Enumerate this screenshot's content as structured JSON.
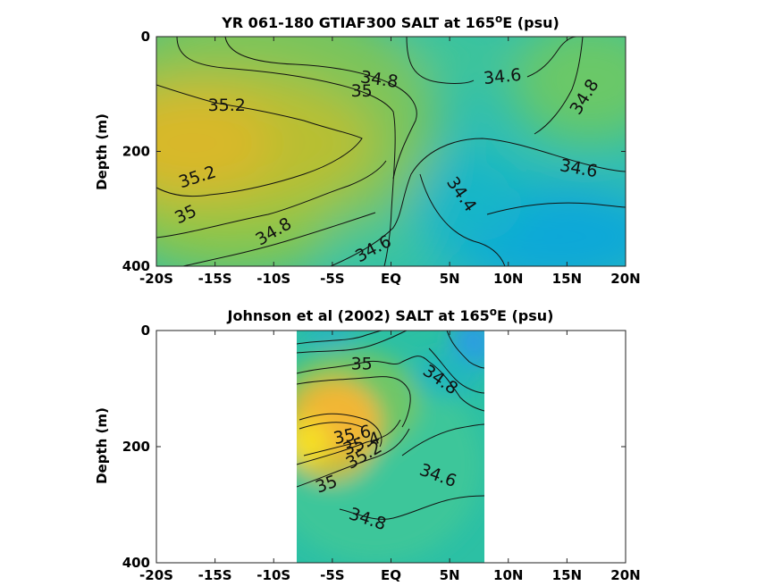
{
  "chart_data": [
    {
      "type": "heatmap",
      "title_main": "YR 061-180 GTIAF300 SALT at 165",
      "title_sup": "o",
      "title_tail": "E (psu)",
      "ylabel": "Depth (m)",
      "x_ticks": [
        "-20S",
        "-15S",
        "-10S",
        "-5S",
        "EQ",
        "5N",
        "10N",
        "15N",
        "20N"
      ],
      "y_ticks": [
        "0",
        "200",
        "400"
      ],
      "xlim": [
        -20,
        20
      ],
      "ylim": [
        0,
        400
      ],
      "y_reversed": true,
      "data_extent": [
        -20,
        20
      ],
      "contour_labels": [
        {
          "text": "34.8",
          "lat": -1,
          "depth": 75,
          "angle": 8
        },
        {
          "text": "34.6",
          "lat": 9.5,
          "depth": 70,
          "angle": -6
        },
        {
          "text": "35",
          "lat": -2.5,
          "depth": 95,
          "angle": 0
        },
        {
          "text": "35.2",
          "lat": -14,
          "depth": 120,
          "angle": 0
        },
        {
          "text": "34.8",
          "lat": 16.5,
          "depth": 105,
          "angle": -58
        },
        {
          "text": "34.6",
          "lat": 16,
          "depth": 230,
          "angle": 10
        },
        {
          "text": "35.2",
          "lat": -16.5,
          "depth": 245,
          "angle": -18
        },
        {
          "text": "35",
          "lat": -17.5,
          "depth": 310,
          "angle": -25
        },
        {
          "text": "34.4",
          "lat": 6,
          "depth": 275,
          "angle": 55
        },
        {
          "text": "34.8",
          "lat": -10,
          "depth": 340,
          "angle": -30
        },
        {
          "text": "34.6",
          "lat": -1.5,
          "depth": 370,
          "angle": -28
        }
      ]
    },
    {
      "type": "heatmap",
      "title_main": "Johnson et al (2002) SALT at 165",
      "title_sup": "o",
      "title_tail": "E (psu)",
      "ylabel": "Depth (m)",
      "x_ticks": [
        "-20S",
        "-15S",
        "-10S",
        "-5S",
        "EQ",
        "5N",
        "10N",
        "15N",
        "20N"
      ],
      "y_ticks": [
        "0",
        "200",
        "400"
      ],
      "xlim": [
        -20,
        20
      ],
      "ylim": [
        0,
        400
      ],
      "y_reversed": true,
      "data_extent": [
        -8,
        8
      ],
      "contour_labels": [
        {
          "text": "35",
          "lat": -2.5,
          "depth": 58,
          "angle": 0
        },
        {
          "text": "34.8",
          "lat": 4.2,
          "depth": 85,
          "angle": 35
        },
        {
          "text": "35.6",
          "lat": -3.3,
          "depth": 180,
          "angle": -12
        },
        {
          "text": "35.4",
          "lat": -2.5,
          "depth": 195,
          "angle": -20
        },
        {
          "text": "35.2",
          "lat": -2.3,
          "depth": 215,
          "angle": -30
        },
        {
          "text": "35",
          "lat": -5.5,
          "depth": 265,
          "angle": -20
        },
        {
          "text": "34.6",
          "lat": 4,
          "depth": 250,
          "angle": 20
        },
        {
          "text": "34.8",
          "lat": -2,
          "depth": 325,
          "angle": 18
        }
      ]
    }
  ]
}
